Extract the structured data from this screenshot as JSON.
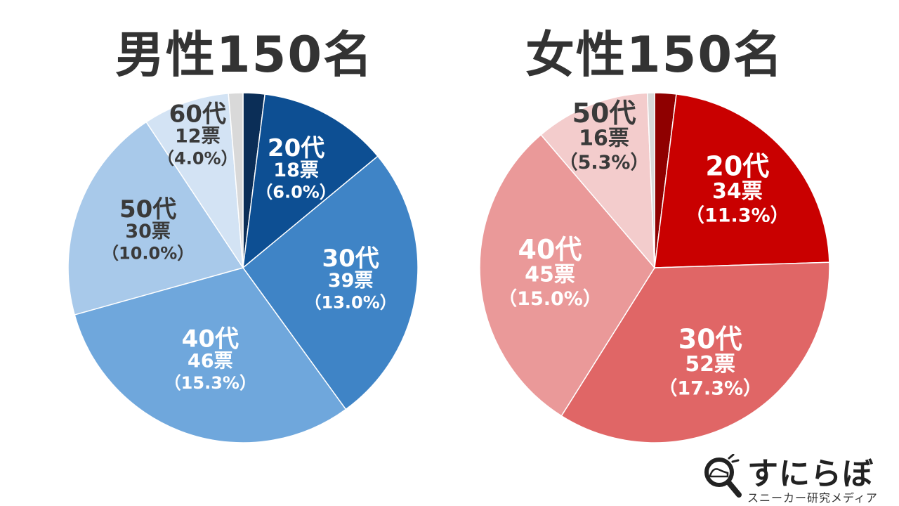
{
  "chart_data": [
    {
      "type": "pie",
      "title": "男性150名",
      "colors": [
        "#0b2e57",
        "#0d4f93",
        "#3f84c6",
        "#6fa7dc",
        "#a8c9ea",
        "#d3e3f4",
        "#d9d9d9"
      ],
      "text_colors": [
        "#ffffff",
        "#ffffff",
        "#ffffff",
        "#ffffff",
        "#3a3a3a",
        "#3a3a3a",
        "#3a3a3a"
      ],
      "slices": [
        {
          "label": "",
          "votes": 3,
          "percent": 2.0
        },
        {
          "label": "20代",
          "votes": 18,
          "votes_label": "18票",
          "percent": 12.0,
          "percent_label": "（6.0%）"
        },
        {
          "label": "30代",
          "votes": 39,
          "votes_label": "39票",
          "percent": 26.0,
          "percent_label": "（13.0%）"
        },
        {
          "label": "40代",
          "votes": 46,
          "votes_label": "46票",
          "percent": 30.7,
          "percent_label": "（15.3%）"
        },
        {
          "label": "50代",
          "votes": 30,
          "votes_label": "30票",
          "percent": 20.0,
          "percent_label": "（10.0%）"
        },
        {
          "label": "60代",
          "votes": 12,
          "votes_label": "12票",
          "percent": 8.0,
          "percent_label": "（4.0%）"
        },
        {
          "label": "",
          "votes": 2,
          "percent": 1.3
        }
      ]
    },
    {
      "type": "pie",
      "title": "女性150名",
      "colors": [
        "#8f0000",
        "#c90000",
        "#e06666",
        "#ea9999",
        "#f3cccc",
        "#d9d9d9"
      ],
      "text_colors": [
        "#ffffff",
        "#ffffff",
        "#ffffff",
        "#ffffff",
        "#3a3a3a",
        "#3a3a3a"
      ],
      "slices": [
        {
          "label": "",
          "votes": 3,
          "percent": 2.0
        },
        {
          "label": "20代",
          "votes": 34,
          "votes_label": "34票",
          "percent": 22.7,
          "percent_label": "（11.3%）"
        },
        {
          "label": "30代",
          "votes": 52,
          "votes_label": "52票",
          "percent": 34.7,
          "percent_label": "（17.3%）"
        },
        {
          "label": "40代",
          "votes": 45,
          "votes_label": "45票",
          "percent": 30.0,
          "percent_label": "（15.0%）"
        },
        {
          "label": "50代",
          "votes": 16,
          "votes_label": "16票",
          "percent": 10.7,
          "percent_label": "（5.3%）"
        },
        {
          "label": "",
          "votes": 1,
          "percent": 0.7
        }
      ]
    }
  ],
  "brand": {
    "name": "すにらぼ",
    "tagline": "スニーカー研究メディア",
    "icon": "magnifier-sneaker-icon",
    "accent": "#222222"
  }
}
